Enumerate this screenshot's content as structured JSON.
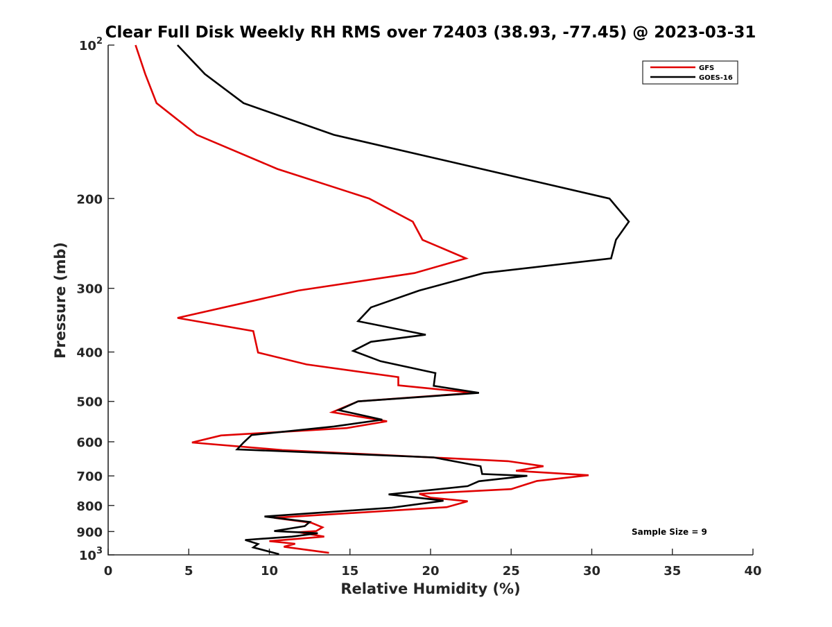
{
  "chart_data": {
    "type": "line",
    "title": "Clear Full Disk Weekly RH RMS over 72403 (38.93, -77.45) @ 2023-03-31",
    "xlabel": "Relative Humidity (%)",
    "ylabel": "Pressure (mb)",
    "xlim": [
      0,
      40
    ],
    "ylim": [
      100,
      1000
    ],
    "y_scale": "log",
    "y_reversed": true,
    "grid": false,
    "legend_position": "top-right",
    "annotation": "Sample Size = 9",
    "x_ticks": [
      {
        "value": 0,
        "label": "0"
      },
      {
        "value": 5,
        "label": "5"
      },
      {
        "value": 10,
        "label": "10"
      },
      {
        "value": 15,
        "label": "15"
      },
      {
        "value": 20,
        "label": "20"
      },
      {
        "value": 25,
        "label": "25"
      },
      {
        "value": 30,
        "label": "30"
      },
      {
        "value": 35,
        "label": "35"
      },
      {
        "value": 40,
        "label": "40"
      }
    ],
    "y_ticks": [
      {
        "value": 100,
        "base": "10",
        "exp": "2"
      },
      {
        "value": 200,
        "label": "200"
      },
      {
        "value": 300,
        "label": "300"
      },
      {
        "value": 400,
        "label": "400"
      },
      {
        "value": 500,
        "label": "500"
      },
      {
        "value": 600,
        "label": "600"
      },
      {
        "value": 700,
        "label": "700"
      },
      {
        "value": 800,
        "label": "800"
      },
      {
        "value": 900,
        "label": "900"
      },
      {
        "value": 1000,
        "base": "10",
        "exp": "3"
      }
    ],
    "series": [
      {
        "name": "GFS",
        "color": "#e00000",
        "points": [
          [
            1.7,
            100
          ],
          [
            2.3,
            114
          ],
          [
            3.0,
            130
          ],
          [
            5.5,
            150
          ],
          [
            10.5,
            175
          ],
          [
            16.2,
            200
          ],
          [
            18.9,
            222
          ],
          [
            19.5,
            241
          ],
          [
            22.2,
            262
          ],
          [
            19.0,
            280
          ],
          [
            11.8,
            303
          ],
          [
            4.3,
            343
          ],
          [
            9.0,
            364
          ],
          [
            9.3,
            401
          ],
          [
            12.3,
            423
          ],
          [
            18.0,
            448
          ],
          [
            18.0,
            465
          ],
          [
            22.7,
            481
          ],
          [
            15.5,
            500
          ],
          [
            13.9,
            525
          ],
          [
            17.3,
            547
          ],
          [
            14.8,
            564
          ],
          [
            7.0,
            583
          ],
          [
            5.2,
            602
          ],
          [
            10.8,
            623
          ],
          [
            24.8,
            655
          ],
          [
            27.0,
            670
          ],
          [
            25.3,
            684
          ],
          [
            29.8,
            698
          ],
          [
            26.6,
            716
          ],
          [
            25.0,
            743
          ],
          [
            19.3,
            759
          ],
          [
            20.0,
            772
          ],
          [
            22.3,
            785
          ],
          [
            21.0,
            806
          ],
          [
            10.3,
            846
          ],
          [
            12.6,
            865
          ],
          [
            13.3,
            883
          ],
          [
            12.9,
            898
          ],
          [
            11.8,
            903
          ],
          [
            13.4,
            921
          ],
          [
            10.0,
            940
          ],
          [
            11.6,
            951
          ],
          [
            10.9,
            964
          ],
          [
            13.7,
            991
          ]
        ]
      },
      {
        "name": "GOES-16",
        "color": "#000000",
        "points": [
          [
            4.3,
            100
          ],
          [
            6.0,
            114
          ],
          [
            8.4,
            130
          ],
          [
            14.0,
            150
          ],
          [
            22.5,
            173
          ],
          [
            31.1,
            200
          ],
          [
            32.3,
            222
          ],
          [
            31.5,
            241
          ],
          [
            31.2,
            262
          ],
          [
            23.3,
            280
          ],
          [
            19.3,
            303
          ],
          [
            16.3,
            327
          ],
          [
            15.5,
            348
          ],
          [
            19.7,
            370
          ],
          [
            16.3,
            382
          ],
          [
            15.2,
            398
          ],
          [
            16.9,
            417
          ],
          [
            20.3,
            440
          ],
          [
            20.2,
            466
          ],
          [
            23.0,
            481
          ],
          [
            15.5,
            500
          ],
          [
            14.3,
            520
          ],
          [
            17.0,
            543
          ],
          [
            14.0,
            560
          ],
          [
            8.9,
            582
          ],
          [
            8.4,
            602
          ],
          [
            8.0,
            621
          ],
          [
            20.2,
            644
          ],
          [
            23.1,
            670
          ],
          [
            23.2,
            694
          ],
          [
            26.0,
            700
          ],
          [
            23.0,
            717
          ],
          [
            22.3,
            733
          ],
          [
            17.4,
            761
          ],
          [
            20.8,
            783
          ],
          [
            17.6,
            808
          ],
          [
            9.7,
            841
          ],
          [
            12.5,
            862
          ],
          [
            12.2,
            878
          ],
          [
            10.3,
            898
          ],
          [
            13.0,
            907
          ],
          [
            11.4,
            921
          ],
          [
            8.5,
            935
          ],
          [
            9.3,
            952
          ],
          [
            9.0,
            967
          ],
          [
            10.6,
            997
          ]
        ]
      }
    ]
  }
}
